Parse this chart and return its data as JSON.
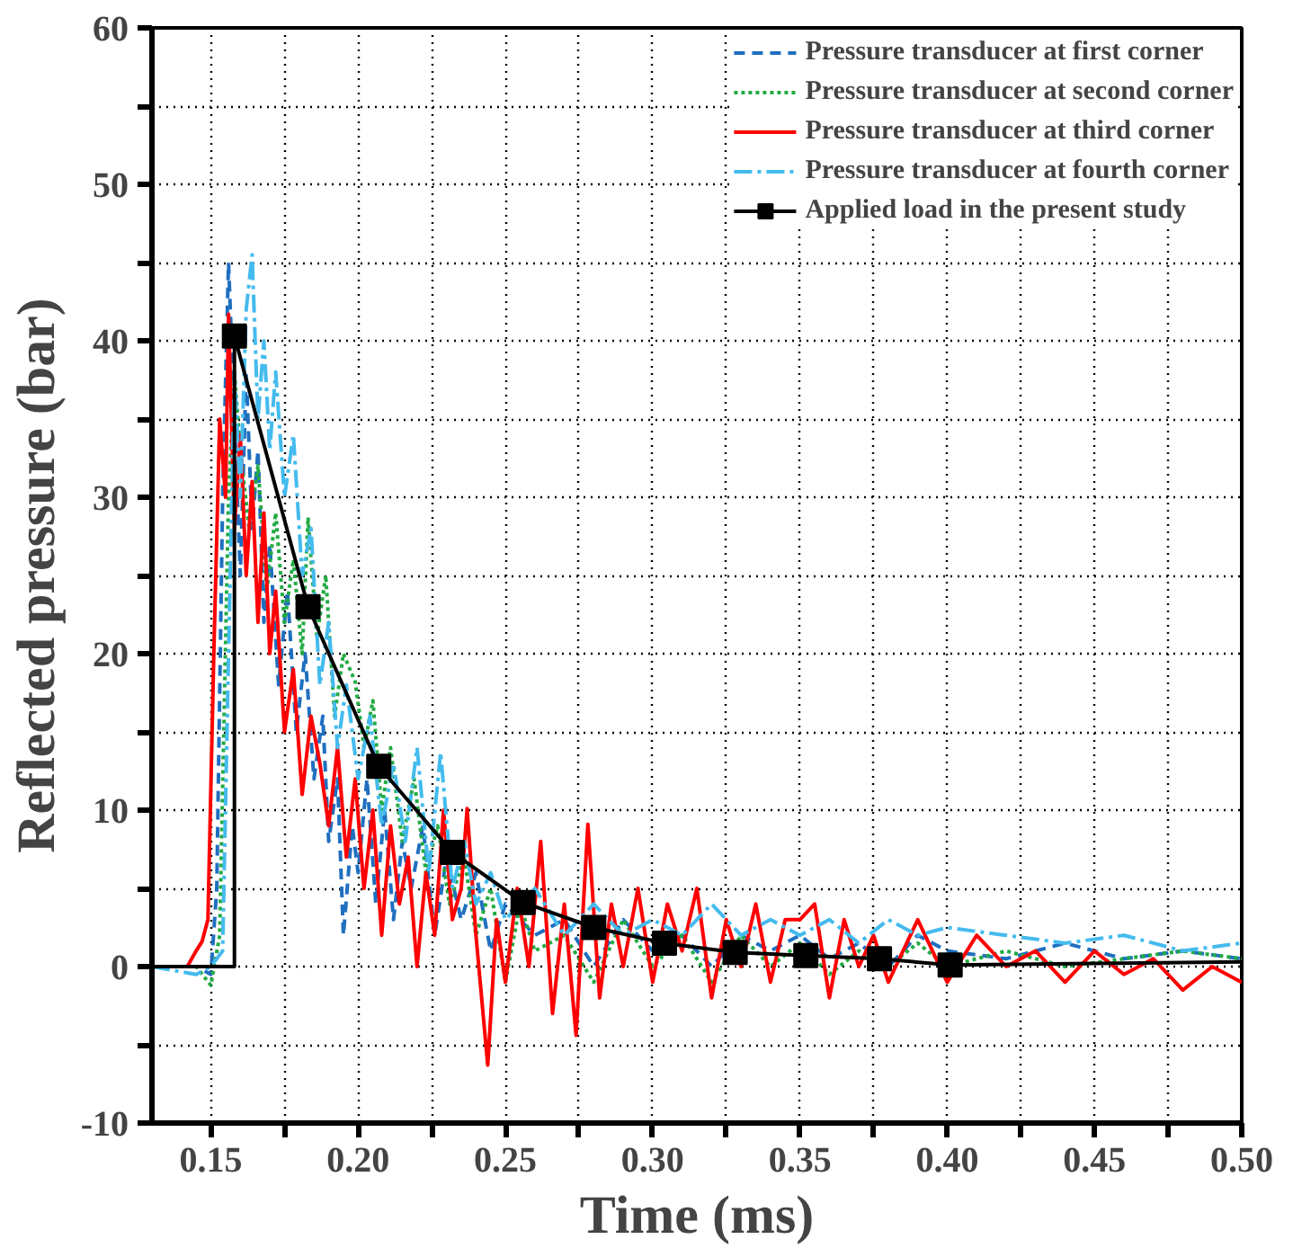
{
  "chart_data": {
    "type": "line",
    "xlabel": "Time (ms)",
    "ylabel": "Reflected pressure (bar)",
    "xlim": [
      0.13,
      0.5
    ],
    "ylim": [
      -10,
      60
    ],
    "xticks": [
      0.15,
      {
        "value": 0.175,
        "label": null
      },
      {
        "value": 0.2,
        "label": "0.20"
      },
      {
        "value": 0.225,
        "label": null
      },
      0.25,
      {
        "value": 0.275,
        "label": null
      },
      {
        "value": 0.3,
        "label": "0.30"
      },
      {
        "value": 0.325,
        "label": null
      },
      0.35,
      {
        "value": 0.375,
        "label": null
      },
      {
        "value": 0.4,
        "label": "0.40"
      },
      {
        "value": 0.425,
        "label": null
      },
      0.45,
      {
        "value": 0.475,
        "label": null
      },
      {
        "value": 0.5,
        "label": "0.50"
      }
    ],
    "yticks": [
      -10,
      {
        "value": -5,
        "label": null
      },
      0,
      {
        "value": 5,
        "label": null
      },
      10,
      {
        "value": 15,
        "label": null
      },
      20,
      {
        "value": 25,
        "label": null
      },
      30,
      {
        "value": 35,
        "label": null
      },
      40,
      {
        "value": 45,
        "label": null
      },
      50,
      {
        "value": 55,
        "label": null
      },
      60
    ],
    "grid": true,
    "legend": "top right",
    "marker": "none",
    "series": [
      {
        "name": "Pressure transducer at first corner",
        "color": "#1f6fc0",
        "line_style": "dashed",
        "x": [
          0.13,
          0.145,
          0.15,
          0.152,
          0.154,
          0.156,
          0.158,
          0.16,
          0.162,
          0.164,
          0.166,
          0.168,
          0.17,
          0.173,
          0.176,
          0.179,
          0.182,
          0.185,
          0.188,
          0.19,
          0.193,
          0.195,
          0.198,
          0.2,
          0.203,
          0.206,
          0.209,
          0.212,
          0.215,
          0.218,
          0.222,
          0.226,
          0.23,
          0.235,
          0.24,
          0.245,
          0.25,
          0.26,
          0.27,
          0.28,
          0.29,
          0.3,
          0.31,
          0.32,
          0.33,
          0.34,
          0.35,
          0.36,
          0.37,
          0.38,
          0.39,
          0.4,
          0.42,
          0.44,
          0.46,
          0.48,
          0.5
        ],
        "values": [
          0,
          0,
          -0.5,
          5,
          30,
          45,
          35,
          25,
          38,
          28,
          33,
          22,
          27,
          18,
          24,
          15,
          20,
          12,
          16,
          8,
          12,
          2,
          9,
          6,
          12,
          4,
          10,
          3,
          8,
          5,
          9,
          2,
          7,
          3,
          6,
          1,
          4,
          2,
          3,
          0,
          3,
          1,
          2,
          0,
          2,
          1,
          2,
          0.5,
          1.5,
          0,
          2,
          1,
          0.5,
          1.5,
          0.5,
          1,
          0.5
        ]
      },
      {
        "name": "Pressure transducer at second corner",
        "color": "#22aa44",
        "line_style": "dotted",
        "x": [
          0.13,
          0.145,
          0.15,
          0.153,
          0.156,
          0.158,
          0.16,
          0.163,
          0.166,
          0.169,
          0.172,
          0.175,
          0.178,
          0.181,
          0.183,
          0.186,
          0.189,
          0.192,
          0.195,
          0.199,
          0.202,
          0.205,
          0.208,
          0.211,
          0.215,
          0.219,
          0.223,
          0.227,
          0.231,
          0.236,
          0.24,
          0.245,
          0.25,
          0.255,
          0.26,
          0.27,
          0.28,
          0.29,
          0.3,
          0.31,
          0.32,
          0.33,
          0.34,
          0.35,
          0.36,
          0.37,
          0.38,
          0.39,
          0.4,
          0.42,
          0.44,
          0.46,
          0.48,
          0.5
        ],
        "values": [
          0,
          0,
          -1.2,
          2,
          30,
          38,
          33,
          28,
          32,
          24,
          29,
          22,
          26,
          20,
          28.7,
          21,
          25,
          16,
          20,
          18.2,
          14,
          17,
          10,
          14,
          8,
          12,
          6,
          9,
          4,
          7,
          2,
          5,
          -1,
          4,
          1,
          2,
          -1,
          3,
          0,
          2,
          -1,
          2,
          0,
          1.5,
          -0.5,
          1,
          0,
          1.5,
          0,
          1,
          0,
          0.5,
          1,
          0.5
        ]
      },
      {
        "name": "Pressure transducer at third corner",
        "color": "#ff0000",
        "line_style": "solid",
        "x": [
          0.13,
          0.142,
          0.145,
          0.147,
          0.149,
          0.151,
          0.153,
          0.155,
          0.156,
          0.158,
          0.16,
          0.162,
          0.164,
          0.166,
          0.168,
          0.17,
          0.172,
          0.175,
          0.178,
          0.181,
          0.184,
          0.187,
          0.19,
          0.193,
          0.196,
          0.199,
          0.202,
          0.205,
          0.208,
          0.211,
          0.214,
          0.217,
          0.22,
          0.223,
          0.226,
          0.229,
          0.232,
          0.235,
          0.237,
          0.24,
          0.244,
          0.247,
          0.25,
          0.254,
          0.258,
          0.262,
          0.266,
          0.27,
          0.274,
          0.278,
          0.282,
          0.286,
          0.29,
          0.295,
          0.3,
          0.305,
          0.31,
          0.315,
          0.32,
          0.325,
          0.33,
          0.335,
          0.34,
          0.345,
          0.35,
          0.355,
          0.36,
          0.365,
          0.37,
          0.375,
          0.38,
          0.39,
          0.4,
          0.41,
          0.42,
          0.43,
          0.44,
          0.45,
          0.46,
          0.47,
          0.48,
          0.49,
          0.5
        ],
        "values": [
          0,
          0,
          1,
          1.6,
          3,
          20,
          35,
          30,
          41.7,
          28,
          34,
          25,
          31,
          22,
          29,
          20,
          24,
          15,
          19,
          11,
          16,
          13,
          9,
          14,
          7,
          12,
          5,
          10,
          2,
          9,
          4,
          7,
          0,
          6,
          2,
          10,
          3,
          5,
          10.1,
          2,
          -6.3,
          3,
          -1,
          5,
          0,
          8,
          -3,
          4,
          -4.4,
          9.1,
          -2,
          4,
          0,
          5,
          -1,
          4,
          1,
          5,
          -2,
          3,
          0,
          4,
          -1,
          3,
          3,
          4,
          -2,
          3,
          0,
          2,
          -1,
          3,
          -1,
          2,
          0,
          1,
          -1,
          1,
          -0.5,
          0.5,
          -1.5,
          0,
          -1
        ]
      },
      {
        "name": "Pressure transducer at fourth corner",
        "color": "#44bbee",
        "line_style": "dashdot",
        "x": [
          0.13,
          0.145,
          0.15,
          0.154,
          0.156,
          0.158,
          0.16,
          0.162,
          0.164,
          0.166,
          0.168,
          0.17,
          0.172,
          0.175,
          0.178,
          0.181,
          0.184,
          0.187,
          0.19,
          0.193,
          0.196,
          0.2,
          0.204,
          0.208,
          0.212,
          0.216,
          0.22,
          0.224,
          0.228,
          0.232,
          0.236,
          0.24,
          0.245,
          0.25,
          0.26,
          0.27,
          0.28,
          0.29,
          0.3,
          0.31,
          0.32,
          0.33,
          0.34,
          0.35,
          0.36,
          0.37,
          0.38,
          0.39,
          0.4,
          0.42,
          0.44,
          0.46,
          0.48,
          0.5
        ],
        "values": [
          0,
          -0.5,
          0,
          1,
          20,
          38,
          30,
          42,
          45.5,
          35,
          40,
          33,
          38,
          30,
          34,
          25,
          28,
          18,
          22,
          14,
          18,
          12,
          16,
          9,
          13,
          8,
          14,
          6,
          13.7,
          5,
          8,
          4,
          6,
          3,
          5,
          2,
          4,
          2,
          3,
          2,
          4,
          2,
          3,
          2,
          3,
          1.5,
          3,
          2,
          2.5,
          2,
          1.5,
          2,
          1,
          1.5
        ]
      },
      {
        "color": "#000000",
        "line_style": "solid",
        "x": [
          0.13,
          0.158,
          0.158
        ],
        "values": [
          0,
          0,
          40.3
        ]
      },
      {
        "color": "#000000",
        "line_style": "solid",
        "x": [
          0.401,
          0.45,
          0.5
        ],
        "values": [
          0.1,
          0.2,
          0.3
        ]
      },
      {
        "name": "Applied load in the present study",
        "color": "#000000",
        "line_style": "solid",
        "marker": "square",
        "x": [
          0.158,
          0.183,
          0.207,
          0.232,
          0.256,
          0.28,
          0.304,
          0.328,
          0.352,
          0.377,
          0.401
        ],
        "values": [
          40.3,
          23.0,
          12.8,
          7.3,
          4.1,
          2.5,
          1.5,
          0.9,
          0.7,
          0.5,
          0.1
        ]
      }
    ]
  }
}
